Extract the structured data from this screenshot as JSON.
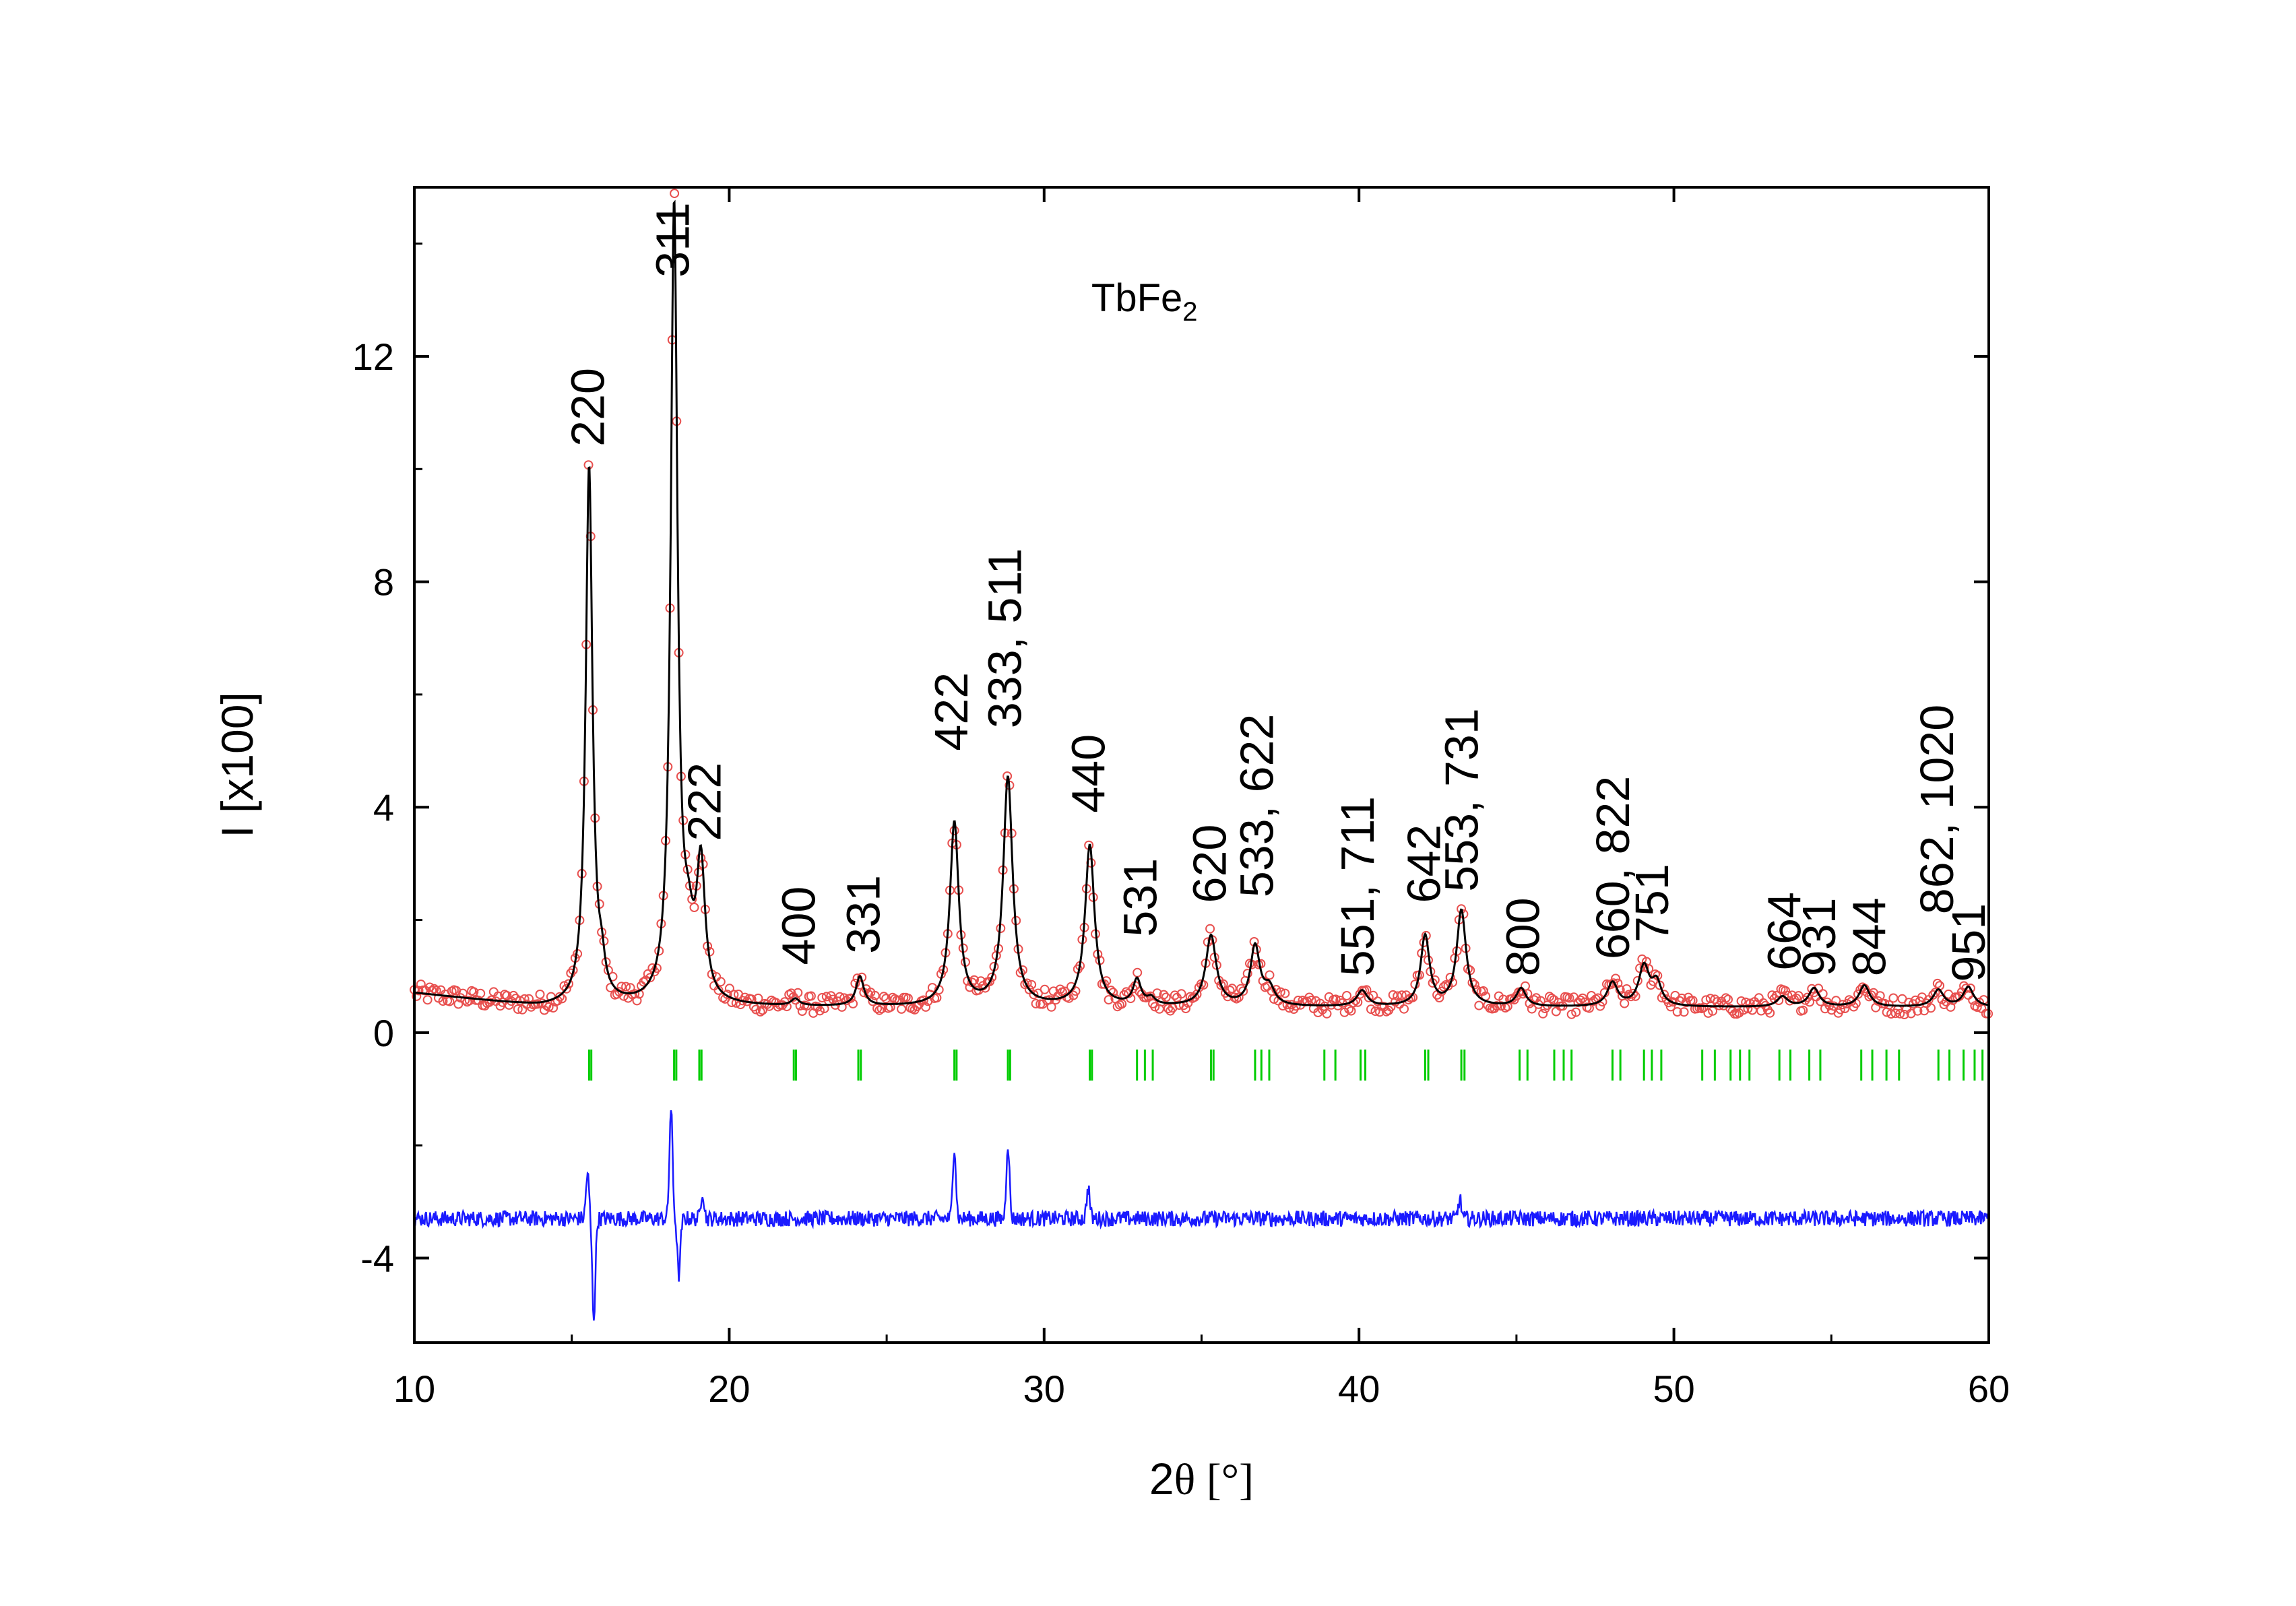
{
  "chart_data": {
    "type": "line",
    "title": "",
    "inset_label": {
      "main": "TbFe",
      "sub": "2"
    },
    "xlabel": {
      "main": "2",
      "symbol": "θ",
      "unit": " [°]"
    },
    "ylabel": "I [x100]",
    "xlim": [
      10,
      60
    ],
    "ylim": [
      -5.5,
      15
    ],
    "x_ticks": [
      10,
      20,
      30,
      40,
      50,
      60
    ],
    "x_tick_labels": [
      "10",
      "20",
      "30",
      "40",
      "50",
      "60"
    ],
    "y_ticks": [
      -4,
      0,
      4,
      8,
      12
    ],
    "y_tick_labels": [
      "-4",
      "0",
      "4",
      "8",
      "12"
    ],
    "grid": false,
    "colors": {
      "observed": "#e8504f",
      "calculated": "#000000",
      "difference": "#1a1aff",
      "bragg": "#00cc00"
    },
    "background": 0.45,
    "peaks": [
      {
        "x": 15.55,
        "h": 9.55,
        "w": 0.13
      },
      {
        "x": 15.95,
        "h": 0.45,
        "w": 0.12
      },
      {
        "x": 18.25,
        "h": 14.1,
        "w": 0.13
      },
      {
        "x": 18.7,
        "h": 0.9,
        "w": 0.2
      },
      {
        "x": 19.1,
        "h": 2.35,
        "w": 0.16
      },
      {
        "x": 22.1,
        "h": 0.12,
        "w": 0.15
      },
      {
        "x": 24.15,
        "h": 0.52,
        "w": 0.15
      },
      {
        "x": 27.15,
        "h": 3.25,
        "w": 0.17
      },
      {
        "x": 28.85,
        "h": 4.05,
        "w": 0.18
      },
      {
        "x": 31.45,
        "h": 2.85,
        "w": 0.18
      },
      {
        "x": 32.95,
        "h": 0.45,
        "w": 0.15
      },
      {
        "x": 33.4,
        "h": 0.12,
        "w": 0.15
      },
      {
        "x": 35.3,
        "h": 1.25,
        "w": 0.2
      },
      {
        "x": 36.7,
        "h": 1.05,
        "w": 0.18
      },
      {
        "x": 37.15,
        "h": 0.3,
        "w": 0.2
      },
      {
        "x": 40.1,
        "h": 0.28,
        "w": 0.2
      },
      {
        "x": 42.1,
        "h": 1.25,
        "w": 0.17
      },
      {
        "x": 43.25,
        "h": 1.7,
        "w": 0.18
      },
      {
        "x": 45.15,
        "h": 0.32,
        "w": 0.18
      },
      {
        "x": 48.05,
        "h": 0.42,
        "w": 0.2
      },
      {
        "x": 49.05,
        "h": 0.7,
        "w": 0.2
      },
      {
        "x": 49.45,
        "h": 0.4,
        "w": 0.18
      },
      {
        "x": 53.45,
        "h": 0.18,
        "w": 0.2
      },
      {
        "x": 54.45,
        "h": 0.33,
        "w": 0.2
      },
      {
        "x": 56.05,
        "h": 0.38,
        "w": 0.2
      },
      {
        "x": 58.4,
        "h": 0.3,
        "w": 0.2
      },
      {
        "x": 59.35,
        "h": 0.35,
        "w": 0.2
      }
    ],
    "bragg_positions": [
      15.55,
      15.62,
      18.25,
      18.32,
      19.05,
      19.12,
      22.05,
      22.12,
      24.1,
      24.18,
      27.15,
      27.22,
      28.85,
      28.92,
      31.45,
      31.52,
      32.95,
      33.2,
      33.45,
      35.3,
      35.38,
      36.7,
      36.9,
      37.15,
      38.9,
      39.25,
      40.05,
      40.2,
      42.1,
      42.2,
      43.25,
      43.35,
      45.1,
      45.35,
      46.2,
      46.5,
      46.75,
      48.05,
      48.3,
      49.05,
      49.3,
      49.6,
      50.9,
      51.3,
      51.8,
      52.1,
      52.4,
      53.35,
      53.7,
      54.3,
      54.65,
      55.95,
      56.3,
      56.75,
      57.15,
      58.4,
      58.75,
      59.2,
      59.55,
      59.8
    ],
    "difference_offset": -3.3,
    "difference_spikes": [
      {
        "x": 15.5,
        "d": 0.8
      },
      {
        "x": 15.7,
        "d": -1.75
      },
      {
        "x": 18.15,
        "d": 1.95
      },
      {
        "x": 18.4,
        "d": -1.0
      },
      {
        "x": 19.15,
        "d": 0.5
      },
      {
        "x": 27.15,
        "d": 1.3
      },
      {
        "x": 28.85,
        "d": 1.35
      },
      {
        "x": 31.4,
        "d": 0.55
      },
      {
        "x": 43.2,
        "d": 0.35
      }
    ],
    "annotations": [
      {
        "text": "220",
        "x": 15.55,
        "y": 10.4
      },
      {
        "text": "311",
        "x": 18.25,
        "y": 13.4
      },
      {
        "text": "222",
        "x": 19.25,
        "y": 3.4
      },
      {
        "text": "400",
        "x": 22.25,
        "y": 1.2
      },
      {
        "text": "331",
        "x": 24.3,
        "y": 1.4
      },
      {
        "text": "422",
        "x": 27.1,
        "y": 5.0
      },
      {
        "text": "333, 511",
        "x": 28.8,
        "y": 5.4
      },
      {
        "text": "440",
        "x": 31.45,
        "y": 3.9
      },
      {
        "text": "531",
        "x": 33.1,
        "y": 1.7
      },
      {
        "text": "620",
        "x": 35.3,
        "y": 2.3
      },
      {
        "text": "533, 622",
        "x": 36.8,
        "y": 2.4
      },
      {
        "text": "551, 711",
        "x": 40.0,
        "y": 1.0
      },
      {
        "text": "642",
        "x": 42.1,
        "y": 2.3
      },
      {
        "text": "553, 731",
        "x": 43.3,
        "y": 2.5
      },
      {
        "text": "800",
        "x": 45.25,
        "y": 1.0
      },
      {
        "text": "660, 822",
        "x": 48.1,
        "y": 1.3
      },
      {
        "text": "751",
        "x": 49.35,
        "y": 1.6
      },
      {
        "text": "664",
        "x": 53.55,
        "y": 1.1
      },
      {
        "text": "931",
        "x": 54.65,
        "y": 1.0
      },
      {
        "text": "844",
        "x": 56.25,
        "y": 1.0
      },
      {
        "text": "862, 1020",
        "x": 58.4,
        "y": 2.1
      },
      {
        "text": "951",
        "x": 59.4,
        "y": 0.9
      }
    ]
  }
}
